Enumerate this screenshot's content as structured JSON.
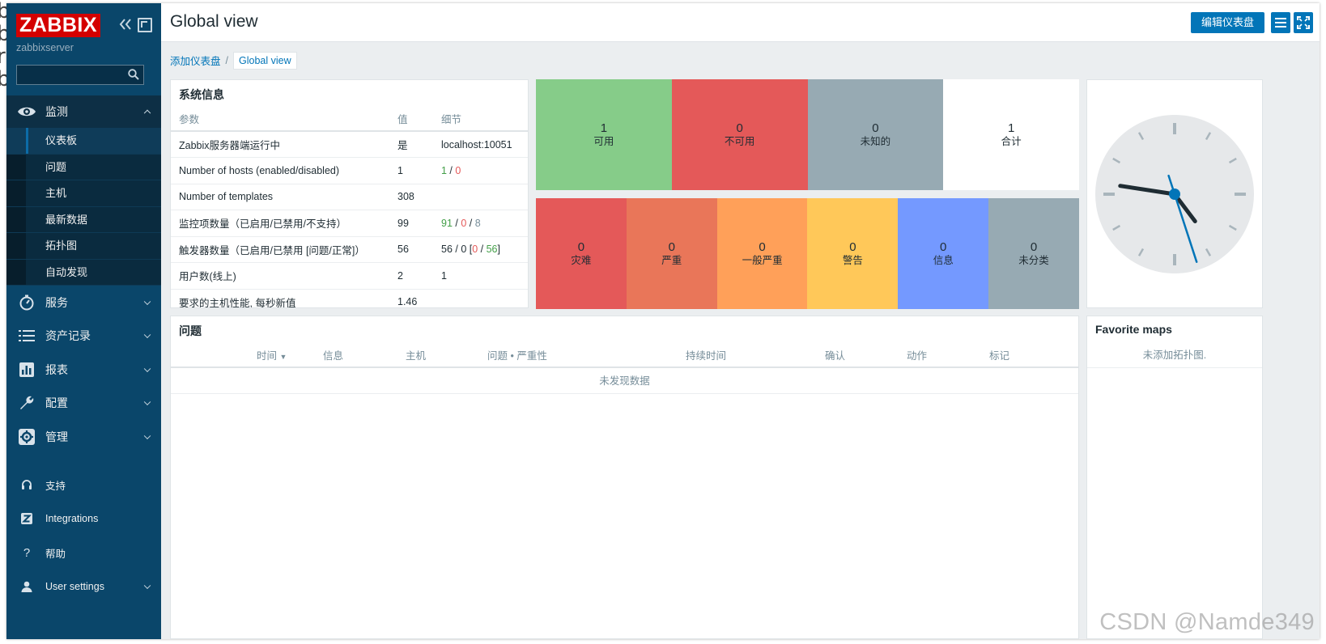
{
  "sidebar": {
    "logo": "ZABBIX",
    "server_name": "zabbixserver",
    "search_placeholder": "",
    "menu": [
      {
        "label": "监测",
        "icon": "eye-icon"
      },
      {
        "label": "服务",
        "icon": "stopwatch-icon"
      },
      {
        "label": "资产记录",
        "icon": "list-icon"
      },
      {
        "label": "报表",
        "icon": "bar-chart-icon"
      },
      {
        "label": "配置",
        "icon": "wrench-icon"
      },
      {
        "label": "管理",
        "icon": "gear-icon"
      }
    ],
    "submenu": [
      "仪表板",
      "问题",
      "主机",
      "最新数据",
      "拓扑图",
      "自动发现"
    ],
    "bottom": [
      {
        "label": "支持",
        "icon": "headset-icon"
      },
      {
        "label": "Integrations",
        "icon": "integrations-icon"
      },
      {
        "label": "帮助",
        "icon": "help-icon"
      },
      {
        "label": "User settings",
        "icon": "user-icon"
      }
    ]
  },
  "header": {
    "title": "Global view",
    "edit_button": "编辑仪表盘"
  },
  "breadcrumb": {
    "parent": "添加仪表盘",
    "current": "Global view"
  },
  "sysinfo": {
    "title": "系统信息",
    "columns": [
      "参数",
      "值",
      "细节"
    ],
    "rows": [
      {
        "param": "Zabbix服务器端运行中",
        "value": "是",
        "detail": "localhost:10051"
      },
      {
        "param": "Number of hosts (enabled/disabled)",
        "value": "1",
        "detail_a": "1",
        "detail_b": "0"
      },
      {
        "param": "Number of templates",
        "value": "308"
      },
      {
        "param": "监控项数量（已启用/已禁用/不支持）",
        "value": "99",
        "detail_a": "91",
        "detail_b": "0",
        "detail_c": "8"
      },
      {
        "param": "触发器数量（已启用/已禁用 [问题/正常]）",
        "value": "56",
        "detail_a": "56",
        "detail_b": "0",
        "detail_c": "0",
        "detail_d": "56"
      },
      {
        "param": "用户数(线上)",
        "value": "2",
        "detail_a": "1"
      },
      {
        "param": "要求的主机性能, 每秒新值",
        "value": "1.46"
      }
    ]
  },
  "host_availability": [
    {
      "count": "1",
      "label": "可用",
      "color": "#86cc89"
    },
    {
      "count": "0",
      "label": "不可用",
      "color": "#e45959"
    },
    {
      "count": "0",
      "label": "未知的",
      "color": "#97aab3"
    },
    {
      "count": "1",
      "label": "合计",
      "color": "#ffffff"
    }
  ],
  "problem_severity": [
    {
      "count": "0",
      "label": "灾难",
      "color": "#e45959"
    },
    {
      "count": "0",
      "label": "严重",
      "color": "#e97659"
    },
    {
      "count": "0",
      "label": "一般严重",
      "color": "#ffa059"
    },
    {
      "count": "0",
      "label": "警告",
      "color": "#ffc859"
    },
    {
      "count": "0",
      "label": "信息",
      "color": "#7499ff"
    },
    {
      "count": "0",
      "label": "未分类",
      "color": "#97aab3"
    }
  ],
  "clock": {
    "hour": 4,
    "minute": 46,
    "second": 27
  },
  "problems": {
    "title": "问题",
    "columns": [
      "时间",
      "信息",
      "主机",
      "问题 • 严重性",
      "持续时间",
      "确认",
      "动作",
      "标记"
    ],
    "empty_text": "未发现数据"
  },
  "favorite_maps": {
    "title": "Favorite maps",
    "empty_text": "未添加拓扑图."
  },
  "watermark": "CSDN @Namde349",
  "bg_edge_text": [
    "b",
    "b",
    "r",
    "b"
  ]
}
